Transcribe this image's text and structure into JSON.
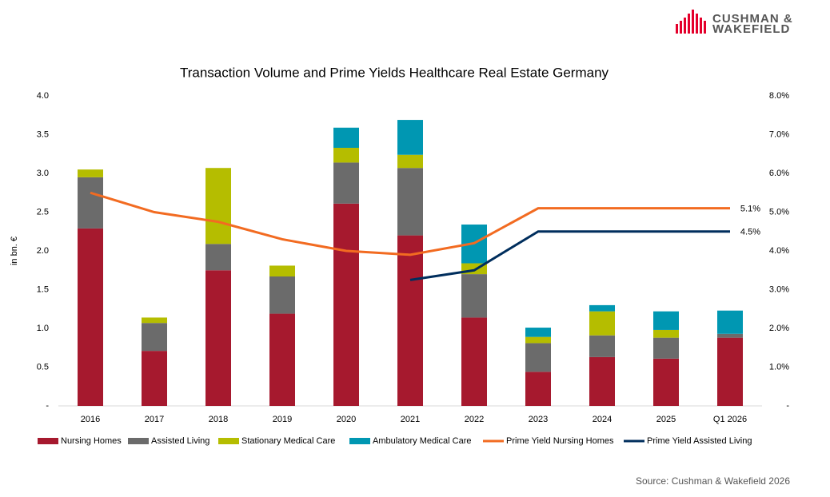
{
  "logo": [
    "CUSHMAN &",
    "WAKEFIELD"
  ],
  "chart_data": {
    "type": "bar",
    "stacked": true,
    "title": "Transaction Volume and Prime Yields Healthcare Real Estate Germany",
    "y_label": "in bn. €",
    "source": "Source: Cushman & Wakefield 2026",
    "categories": [
      "2016",
      "2017",
      "2018",
      "2019",
      "2020",
      "2021",
      "2022",
      "2023",
      "2024",
      "2025",
      "Q1 2026"
    ],
    "ylim": [
      0,
      4
    ],
    "yticks": [
      {
        "value": 0,
        "label": "-"
      },
      0.5,
      {
        "value": 1,
        "label": "1.0"
      },
      1.5,
      {
        "value": 2,
        "label": "2.0"
      },
      2.5,
      {
        "value": 3,
        "label": "3.0"
      },
      3.5,
      {
        "value": 4,
        "label": "4.0"
      }
    ],
    "y2lim": [
      0,
      8
    ],
    "y2ticks": [
      {
        "value": 0,
        "label": "-"
      },
      {
        "value": 1,
        "label": "1.0%"
      },
      {
        "value": 2,
        "label": "2.0%"
      },
      {
        "value": 3,
        "label": "3.0%"
      },
      {
        "value": 4,
        "label": "4.0%"
      },
      {
        "value": 5,
        "label": "5.0%"
      },
      {
        "value": 6,
        "label": "6.0%"
      },
      {
        "value": 7,
        "label": "7.0%"
      },
      {
        "value": 8,
        "label": "8.0%"
      }
    ],
    "series": [
      {
        "name": "Nursing Homes",
        "type": "bar",
        "color": "#a6192e",
        "values": [
          2.29,
          0.71,
          1.75,
          1.19,
          2.61,
          2.2,
          1.14,
          0.44,
          0.63,
          0.61,
          0.88
        ]
      },
      {
        "name": "Assisted Living",
        "type": "bar",
        "color": "#6b6b6b",
        "values": [
          0.66,
          0.36,
          0.34,
          0.48,
          0.53,
          0.87,
          0.56,
          0.37,
          0.28,
          0.27,
          0.05
        ]
      },
      {
        "name": "Stationary Medical Care",
        "type": "bar",
        "color": "#b5bd00",
        "values": [
          0.1,
          0.07,
          0.98,
          0.14,
          0.19,
          0.17,
          0.14,
          0.08,
          0.31,
          0.1,
          0
        ]
      },
      {
        "name": "Ambulatory Medical Care",
        "type": "bar",
        "color": "#0097b2",
        "values": [
          0,
          0,
          0,
          0,
          0.26,
          0.45,
          0.5,
          0.12,
          0.08,
          0.24,
          0.3
        ]
      },
      {
        "name": "Prime Yield Nursing Homes",
        "type": "line",
        "axis": "y2",
        "color": "#f26b21",
        "values": [
          5.5,
          5.0,
          4.75,
          4.3,
          4.0,
          3.9,
          4.2,
          5.1,
          5.1,
          5.1,
          5.1
        ],
        "value_labels": [
          null,
          null,
          null,
          null,
          null,
          null,
          null,
          null,
          null,
          null,
          "5.1%"
        ]
      },
      {
        "name": "Prime Yield Assisted Living",
        "type": "line",
        "axis": "y2",
        "color": "#002e5d",
        "values": [
          null,
          null,
          null,
          null,
          null,
          3.25,
          3.5,
          4.5,
          4.5,
          4.5,
          4.5
        ],
        "value_labels": [
          null,
          null,
          null,
          null,
          null,
          null,
          null,
          null,
          null,
          null,
          "4.5%"
        ]
      }
    ]
  }
}
